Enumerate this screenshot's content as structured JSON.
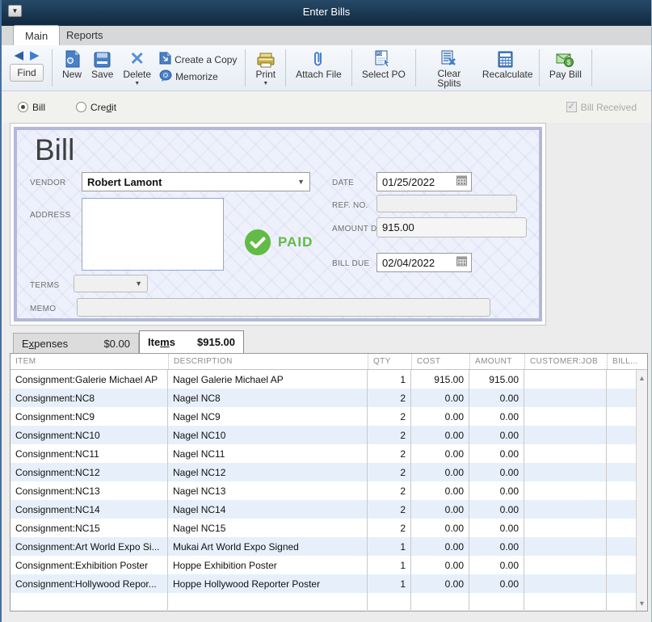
{
  "window": {
    "title": "Enter Bills"
  },
  "ribbon_tabs": {
    "main": "Main",
    "reports": "Reports"
  },
  "toolbar": {
    "find": "Find",
    "new": "New",
    "save": "Save",
    "delete": "Delete",
    "create_copy": "Create a Copy",
    "memorize": "Memorize",
    "print": "Print",
    "attach_file": "Attach File",
    "select_po": "Select PO",
    "clear_splits": "Clear Splits",
    "recalculate": "Recalculate",
    "pay_bill": "Pay Bill"
  },
  "form_type": {
    "bill_label": "Bill",
    "credit": {
      "pre": "Cre",
      "key": "d",
      "post": "it"
    },
    "bill_received": "Bill Received"
  },
  "bill": {
    "heading": "Bill",
    "vendor_label": "VENDOR",
    "vendor_value": "Robert Lamont",
    "address_label": "ADDRESS",
    "address_value": "",
    "date_label": "DATE",
    "date_value": "01/25/2022",
    "ref_label": "REF. NO.",
    "ref_value": "",
    "amount_label": "AMOUNT DUE",
    "amount_value": "915.00",
    "bill_due_label": "BILL DUE",
    "bill_due_value": "02/04/2022",
    "terms_label": "TERMS",
    "terms_value": "",
    "memo_label": "MEMO",
    "memo_value": "",
    "paid_stamp": "PAID"
  },
  "detail_tabs": {
    "expenses": {
      "pre": "E",
      "key": "x",
      "post": "penses",
      "amount": "$0.00"
    },
    "items": {
      "pre": "Ite",
      "key": "m",
      "post": "s",
      "amount": "$915.00"
    }
  },
  "items_table": {
    "columns": [
      "ITEM",
      "DESCRIPTION",
      "QTY",
      "COST",
      "AMOUNT",
      "CUSTOMER:JOB",
      "BILL..."
    ],
    "rows": [
      {
        "item": "Consignment:Galerie Michael AP",
        "description": "Nagel Galerie Michael AP",
        "qty": "1",
        "cost": "915.00",
        "amount": "915.00",
        "customer_job": "",
        "billable": ""
      },
      {
        "item": "Consignment:NC8",
        "description": "Nagel NC8",
        "qty": "2",
        "cost": "0.00",
        "amount": "0.00",
        "customer_job": "",
        "billable": ""
      },
      {
        "item": "Consignment:NC9",
        "description": "Nagel NC9",
        "qty": "2",
        "cost": "0.00",
        "amount": "0.00",
        "customer_job": "",
        "billable": ""
      },
      {
        "item": "Consignment:NC10",
        "description": "Nagel NC10",
        "qty": "2",
        "cost": "0.00",
        "amount": "0.00",
        "customer_job": "",
        "billable": ""
      },
      {
        "item": "Consignment:NC11",
        "description": "Nagel NC11",
        "qty": "2",
        "cost": "0.00",
        "amount": "0.00",
        "customer_job": "",
        "billable": ""
      },
      {
        "item": "Consignment:NC12",
        "description": "Nagel NC12",
        "qty": "2",
        "cost": "0.00",
        "amount": "0.00",
        "customer_job": "",
        "billable": ""
      },
      {
        "item": "Consignment:NC13",
        "description": "Nagel NC13",
        "qty": "2",
        "cost": "0.00",
        "amount": "0.00",
        "customer_job": "",
        "billable": ""
      },
      {
        "item": "Consignment:NC14",
        "description": "Nagel NC14",
        "qty": "2",
        "cost": "0.00",
        "amount": "0.00",
        "customer_job": "",
        "billable": ""
      },
      {
        "item": "Consignment:NC15",
        "description": "Nagel NC15",
        "qty": "2",
        "cost": "0.00",
        "amount": "0.00",
        "customer_job": "",
        "billable": ""
      },
      {
        "item": "Consignment:Art World Expo Si...",
        "description": "Mukai Art World Expo Signed",
        "qty": "1",
        "cost": "0.00",
        "amount": "0.00",
        "customer_job": "",
        "billable": ""
      },
      {
        "item": "Consignment:Exhibition Poster",
        "description": "Hoppe Exhibition Poster",
        "qty": "1",
        "cost": "0.00",
        "amount": "0.00",
        "customer_job": "",
        "billable": ""
      },
      {
        "item": "Consignment:Hollywood Repor...",
        "description": "Hoppe Hollywood Reporter Poster",
        "qty": "1",
        "cost": "0.00",
        "amount": "0.00",
        "customer_job": "",
        "billable": ""
      }
    ]
  },
  "colors": {
    "titlebar": "#16344f",
    "accent_blue": "#3f7ec9",
    "paid_green": "#62bb46",
    "row_alt": "#e7f0fa",
    "bill_border": "#b5b7da"
  }
}
